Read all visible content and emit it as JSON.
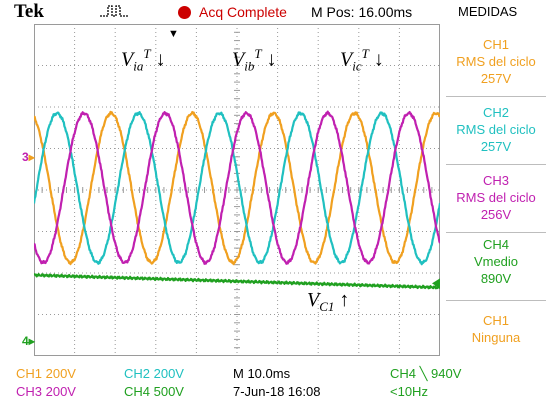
{
  "header": {
    "brand": "Tek",
    "status": "Acq Complete",
    "mpos": "M Pos: 16.00ms",
    "measure_title": "MEDIDAS"
  },
  "measurements": [
    {
      "ch": "CH1",
      "label": "RMS del ciclo",
      "value": "257V",
      "color": "#f0a020"
    },
    {
      "ch": "CH2",
      "label": "RMS del ciclo",
      "value": "257V",
      "color": "#20c0c0"
    },
    {
      "ch": "CH3",
      "label": "RMS del ciclo",
      "value": "256V",
      "color": "#c020b0"
    },
    {
      "ch": "CH4",
      "label": "Vmedio",
      "value": "890V",
      "color": "#20a020"
    },
    {
      "ch": "CH1",
      "label": "Ninguna",
      "value": "",
      "color": "#f0a020"
    }
  ],
  "footer": {
    "ch1": "CH1  200V",
    "ch2": "CH2  200V",
    "timebase": "M 10.0ms",
    "trigger": "CH4 ╲ 940V",
    "ch3": "CH3  200V",
    "ch4": "CH4  500V",
    "date": "7-Jun-18 16:08",
    "freq": "<10Hz"
  },
  "annotations": {
    "via": "V",
    "via_sub": "ia",
    "vib": "V",
    "vib_sub": "ib",
    "vic": "V",
    "vic_sub": "ic",
    "sup": "T",
    "arrow_down": "↓",
    "vc1": "V",
    "vc1_sub": "C1",
    "arrow_up": "↑"
  },
  "markers": {
    "m3": "3",
    "m4": "4"
  },
  "colors": {
    "ch1": "#f0a020",
    "ch2": "#20c0c0",
    "ch3": "#c020b0",
    "ch4": "#20a020",
    "grid": "#9a9a9a"
  },
  "chart_data": {
    "type": "line",
    "period_ms": 20,
    "x_range_ms": [
      -34,
      66
    ],
    "series": [
      {
        "name": "CH1",
        "amplitude_div": 1.8,
        "phase_deg": 0,
        "offset_div": 0.05
      },
      {
        "name": "CH2",
        "amplitude_div": 1.8,
        "phase_deg": -120,
        "offset_div": 0.05
      },
      {
        "name": "CH3",
        "amplitude_div": 1.8,
        "phase_deg": 120,
        "offset_div": 0.05
      },
      {
        "name": "CH4",
        "level_div_start": -2.05,
        "level_div_end": -2.35
      }
    ]
  }
}
